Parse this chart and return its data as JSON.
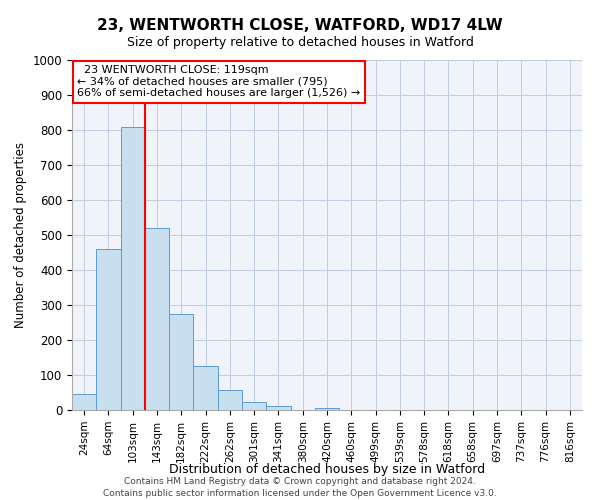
{
  "title1": "23, WENTWORTH CLOSE, WATFORD, WD17 4LW",
  "title2": "Size of property relative to detached houses in Watford",
  "xlabel": "Distribution of detached houses by size in Watford",
  "ylabel": "Number of detached properties",
  "bar_labels": [
    "24sqm",
    "64sqm",
    "103sqm",
    "143sqm",
    "182sqm",
    "222sqm",
    "262sqm",
    "301sqm",
    "341sqm",
    "380sqm",
    "420sqm",
    "460sqm",
    "499sqm",
    "539sqm",
    "578sqm",
    "618sqm",
    "658sqm",
    "697sqm",
    "737sqm",
    "776sqm",
    "816sqm"
  ],
  "bar_heights": [
    47,
    460,
    810,
    520,
    275,
    125,
    57,
    22,
    12,
    0,
    7,
    0,
    0,
    0,
    0,
    0,
    0,
    0,
    0,
    0,
    0
  ],
  "bar_color": "#c8dff0",
  "bar_edge_color": "#5b9bd5",
  "vline_x": 2.5,
  "vline_color": "red",
  "ylim": [
    0,
    1000
  ],
  "yticks": [
    0,
    100,
    200,
    300,
    400,
    500,
    600,
    700,
    800,
    900,
    1000
  ],
  "annotation_title": "23 WENTWORTH CLOSE: 119sqm",
  "annotation_line1": "← 34% of detached houses are smaller (795)",
  "annotation_line2": "66% of semi-detached houses are larger (1,526) →",
  "annotation_box_color": "white",
  "annotation_box_edge": "red",
  "footer1": "Contains HM Land Registry data © Crown copyright and database right 2024.",
  "footer2": "Contains public sector information licensed under the Open Government Licence v3.0.",
  "bg_color": "#f0f4fa"
}
